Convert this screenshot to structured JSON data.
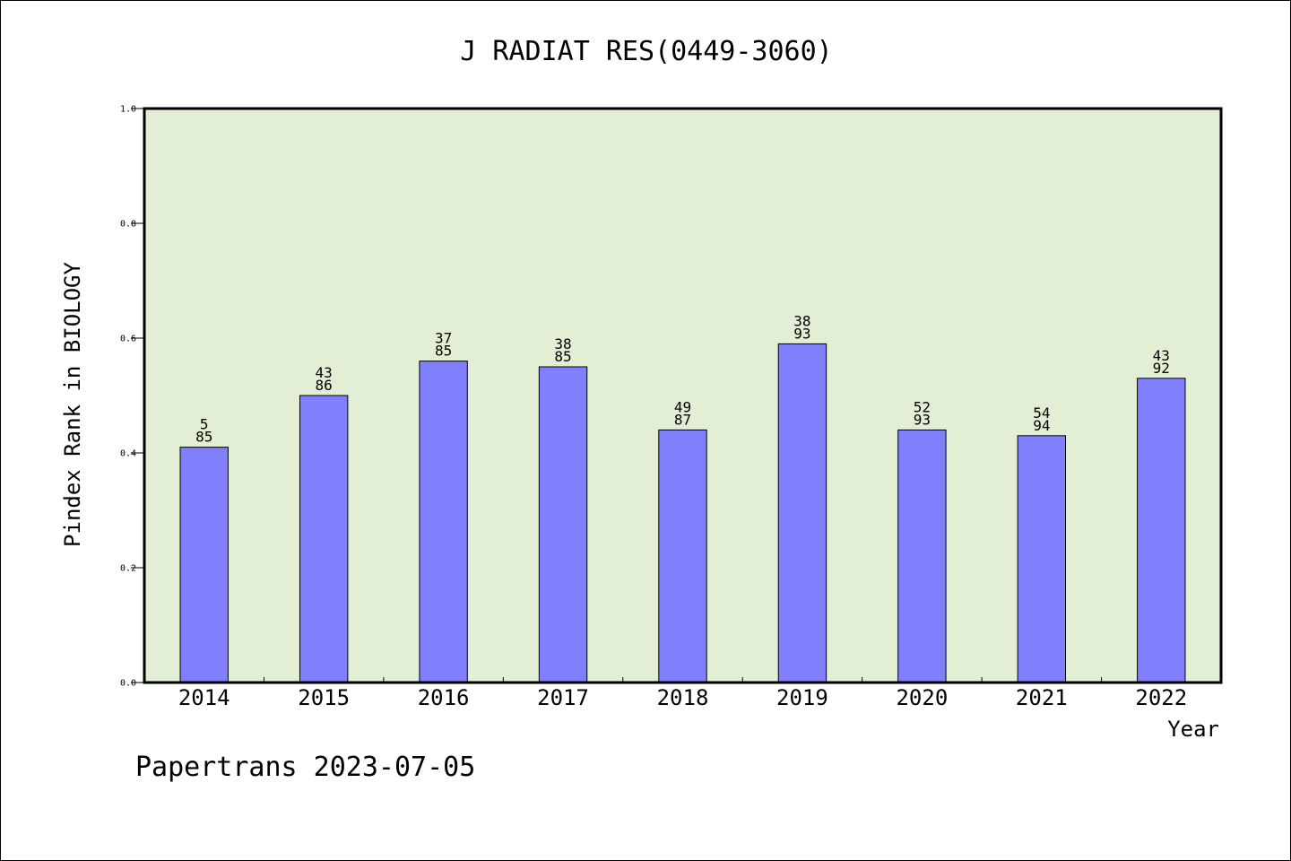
{
  "colors": {
    "plot_background": "#e2efd5",
    "bar_fill": "#8080ff",
    "bar_stroke": "#000000",
    "axis": "#000000"
  },
  "footer": {
    "text": "Papertrans 2023-07-05"
  },
  "chart_data": {
    "type": "bar",
    "title": "J RADIAT RES(0449-3060)",
    "xlabel": "Year",
    "ylabel": "Pindex Rank in BIOLOGY",
    "ylim": [
      0.0,
      1.0
    ],
    "yticks": [
      "0.0",
      "0.2",
      "0.4",
      "0.6",
      "0.8",
      "1.0"
    ],
    "grid": false,
    "categories": [
      "2014",
      "2015",
      "2016",
      "2017",
      "2018",
      "2019",
      "2020",
      "2021",
      "2022"
    ],
    "values": [
      0.41,
      0.5,
      0.56,
      0.55,
      0.44,
      0.59,
      0.44,
      0.43,
      0.53
    ],
    "labels_top": [
      "5",
      "43",
      "37",
      "38",
      "49",
      "38",
      "52",
      "54",
      "43"
    ],
    "labels_bottom": [
      "85",
      "86",
      "85",
      "85",
      "87",
      "93",
      "93",
      "94",
      "92"
    ]
  }
}
